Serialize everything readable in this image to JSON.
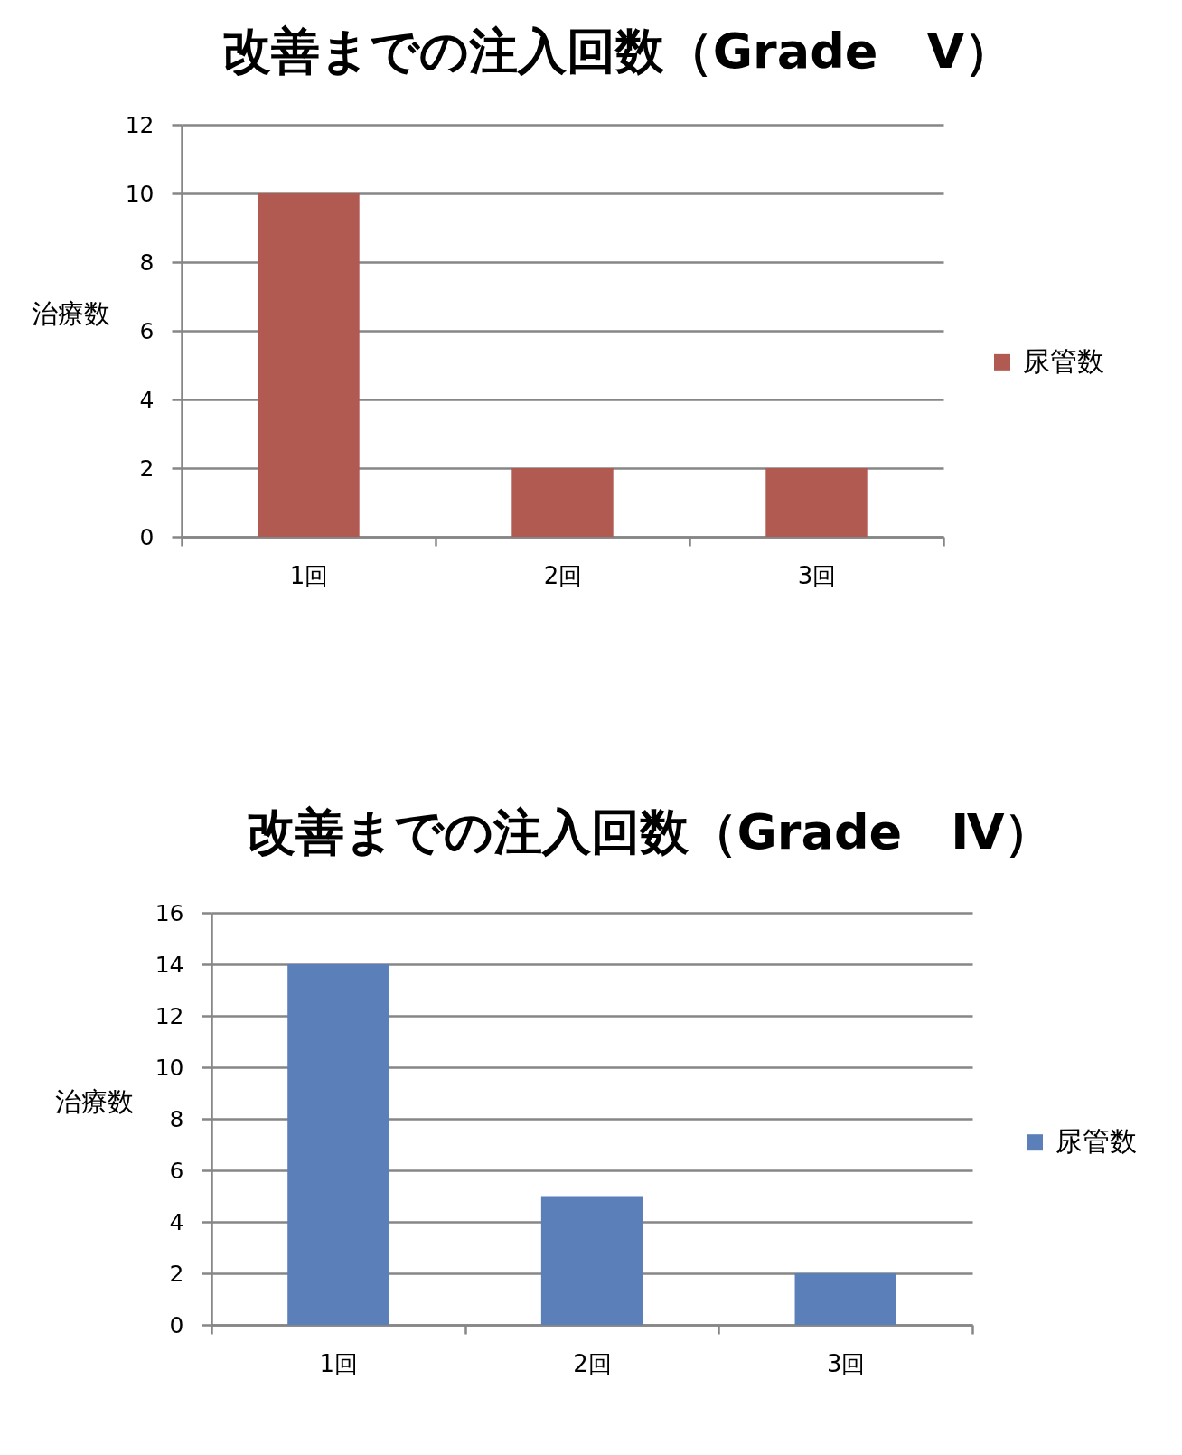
{
  "chart_data": [
    {
      "type": "bar",
      "title": "改善までの注入回数（Grade　Ⅴ）",
      "ylabel": "治療数",
      "categories": [
        "1回",
        "2回",
        "3回"
      ],
      "series": [
        {
          "name": "尿管数",
          "color": "#b05a51",
          "values": [
            10,
            2,
            2
          ]
        }
      ],
      "ylim": [
        0,
        12
      ],
      "yticks": [
        0,
        2,
        4,
        6,
        8,
        10,
        12
      ],
      "grid": "y",
      "legend": "right"
    },
    {
      "type": "bar",
      "title": "改善までの注入回数（Grade　Ⅳ）",
      "ylabel": "治療数",
      "categories": [
        "1回",
        "2回",
        "3回"
      ],
      "series": [
        {
          "name": "尿管数",
          "color": "#5b7fb8",
          "values": [
            14,
            5,
            2
          ]
        }
      ],
      "ylim": [
        0,
        16
      ],
      "yticks": [
        0,
        2,
        4,
        6,
        8,
        10,
        12,
        14,
        16
      ],
      "grid": "y",
      "legend": "right"
    }
  ]
}
